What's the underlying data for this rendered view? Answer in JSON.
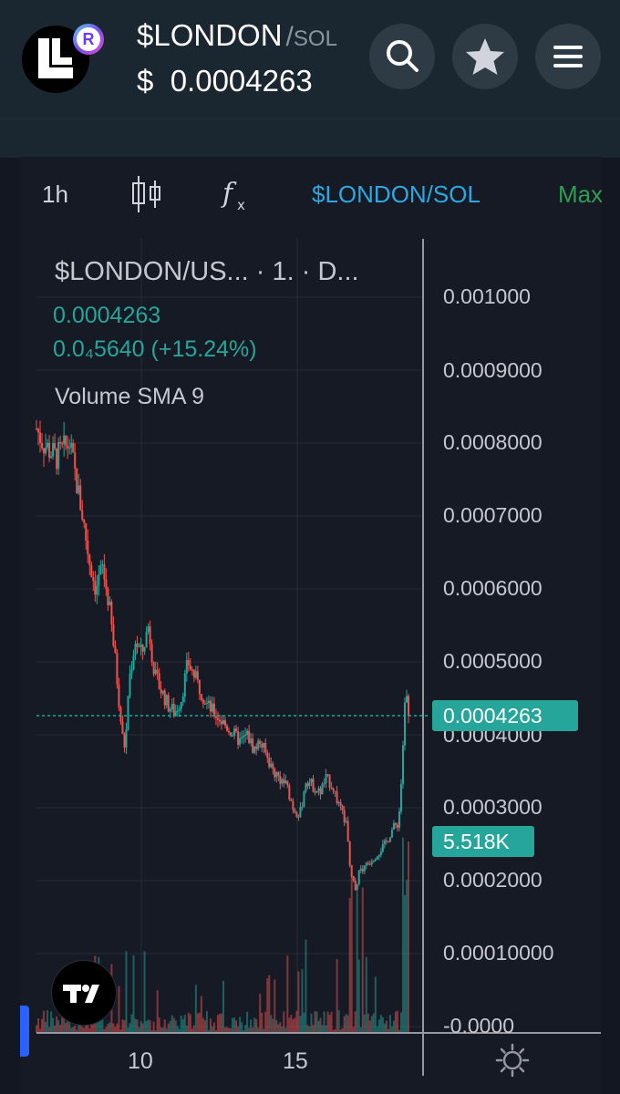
{
  "header": {
    "pair": "$LONDON",
    "slash": "/",
    "quote": "SOL",
    "price_prefix": "$",
    "price": "0.0004263",
    "logo_icon": "london-token-logo-icon",
    "badge_icon": "raydium-badge-icon",
    "badge_letter": "R"
  },
  "toolbar": {
    "interval": "1h",
    "symbol": "$LONDON/SOL",
    "max": "Max"
  },
  "legend": {
    "title": "$LONDON/US... · 1. · D...",
    "price": "0.0004263",
    "change": "0.0₄5640 (+15.24%)",
    "volume": "Volume SMA 9"
  },
  "chart_data": {
    "type": "candlestick",
    "title": "$LONDON/US... · 1. · D...",
    "x_ticks": [
      "10",
      "15"
    ],
    "y_ticks": [
      "0.001000",
      "0.0009000",
      "0.0008000",
      "0.0007000",
      "0.0006000",
      "0.0005000",
      "0.0004000",
      "0.0003000",
      "0.0002000",
      "0.00010000",
      "-0.0000"
    ],
    "ylim": [
      0,
      0.001
    ],
    "last_price": 0.0004263,
    "last_price_label": "0.0004263",
    "volume_label": "5.518K",
    "up_color": "#26a69a",
    "down_color": "#ef5350",
    "close_path": [
      [
        0,
        0.00082
      ],
      [
        2,
        0.0008
      ],
      [
        4,
        0.00079
      ],
      [
        6,
        0.00078
      ],
      [
        8,
        0.00079
      ],
      [
        10,
        0.0008
      ],
      [
        12,
        0.00075
      ],
      [
        14,
        0.0007
      ],
      [
        16,
        0.00064
      ],
      [
        18,
        0.0006
      ],
      [
        20,
        0.00063
      ],
      [
        22,
        0.00058
      ],
      [
        24,
        0.0005
      ],
      [
        26,
        0.0004
      ],
      [
        27,
        0.00038
      ],
      [
        28,
        0.00047
      ],
      [
        30,
        0.00053
      ],
      [
        32,
        0.00051
      ],
      [
        34,
        0.00055
      ],
      [
        36,
        0.00048
      ],
      [
        38,
        0.00046
      ],
      [
        40,
        0.00044
      ],
      [
        42,
        0.00043
      ],
      [
        44,
        0.00045
      ],
      [
        46,
        0.0005
      ],
      [
        48,
        0.00048
      ],
      [
        50,
        0.00046
      ],
      [
        52,
        0.00044
      ],
      [
        54,
        0.00043
      ],
      [
        56,
        0.00042
      ],
      [
        58,
        0.00041
      ],
      [
        60,
        0.0004
      ],
      [
        62,
        0.00039
      ],
      [
        64,
        0.0004
      ],
      [
        66,
        0.00038
      ],
      [
        68,
        0.00039
      ],
      [
        70,
        0.00037
      ],
      [
        72,
        0.00035
      ],
      [
        74,
        0.00034
      ],
      [
        76,
        0.00033
      ],
      [
        78,
        0.0003
      ],
      [
        80,
        0.00029
      ],
      [
        82,
        0.00034
      ],
      [
        84,
        0.00033
      ],
      [
        86,
        0.00032
      ],
      [
        88,
        0.00034
      ],
      [
        90,
        0.00033
      ],
      [
        92,
        0.0003
      ],
      [
        94,
        0.00028
      ],
      [
        95,
        0.00023
      ],
      [
        96,
        0.0002
      ],
      [
        97,
        0.00019
      ],
      [
        98,
        0.00021
      ],
      [
        100,
        0.00022
      ],
      [
        102,
        0.00023
      ],
      [
        104,
        0.00024
      ],
      [
        106,
        0.00025
      ],
      [
        108,
        0.00027
      ],
      [
        110,
        0.00028
      ],
      [
        111,
        0.00035
      ],
      [
        112,
        0.00046
      ],
      [
        113,
        0.00043
      ]
    ]
  },
  "icons": {
    "search": "search-icon",
    "star": "star-icon",
    "menu": "menu-icon",
    "candles": "candlestick-icon",
    "fx": "indicators-fx-icon",
    "tv": "tradingview-logo-icon",
    "settings": "settings-gear-icon"
  },
  "colors": {
    "accent": "#26a69a",
    "symbol": "#2ca8e0",
    "max": "#2e9e4f"
  }
}
